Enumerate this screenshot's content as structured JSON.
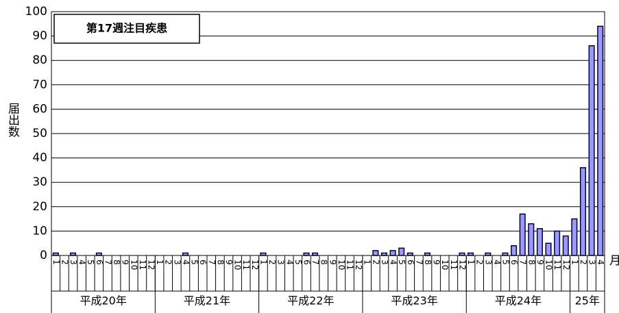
{
  "chart_data": {
    "type": "bar",
    "annotation": "第17週注目疾患",
    "y_label": "届出数",
    "x_unit": "月",
    "groups": [
      {
        "label": "平成20年",
        "categories": [
          "1",
          "2",
          "3",
          "4",
          "5",
          "6",
          "7",
          "8",
          "9",
          "10",
          "11",
          "12"
        ]
      },
      {
        "label": "平成21年",
        "categories": [
          "1",
          "2",
          "3",
          "4",
          "5",
          "6",
          "7",
          "8",
          "9",
          "10",
          "11",
          "12"
        ]
      },
      {
        "label": "平成22年",
        "categories": [
          "1",
          "2",
          "3",
          "4",
          "5",
          "6",
          "7",
          "8",
          "9",
          "10",
          "11",
          "12"
        ]
      },
      {
        "label": "平成23年",
        "categories": [
          "1",
          "2",
          "3",
          "4",
          "5",
          "6",
          "7",
          "8",
          "9",
          "10",
          "11",
          "12"
        ]
      },
      {
        "label": "平成24年",
        "categories": [
          "1",
          "2",
          "3",
          "4",
          "5",
          "6",
          "7",
          "8",
          "9",
          "10",
          "11",
          "12"
        ]
      },
      {
        "label": "25年",
        "categories": [
          "1",
          "2",
          "3",
          "4"
        ]
      }
    ],
    "values": [
      1,
      0,
      1,
      0,
      0,
      1,
      0,
      0,
      0,
      0,
      0,
      0,
      0,
      0,
      0,
      1,
      0,
      0,
      0,
      0,
      0,
      0,
      0,
      0,
      1,
      0,
      0,
      0,
      0,
      1,
      1,
      0,
      0,
      0,
      0,
      0,
      0,
      2,
      1,
      2,
      3,
      1,
      0,
      1,
      0,
      0,
      0,
      1,
      1,
      0,
      1,
      0,
      1,
      4,
      17,
      13,
      11,
      5,
      10,
      8,
      15,
      36,
      86,
      94
    ],
    "color": "#9999ff",
    "ylim": [
      0,
      100
    ],
    "yticks": [
      0,
      10,
      20,
      30,
      40,
      50,
      60,
      70,
      80,
      90,
      100
    ],
    "grid": true
  }
}
